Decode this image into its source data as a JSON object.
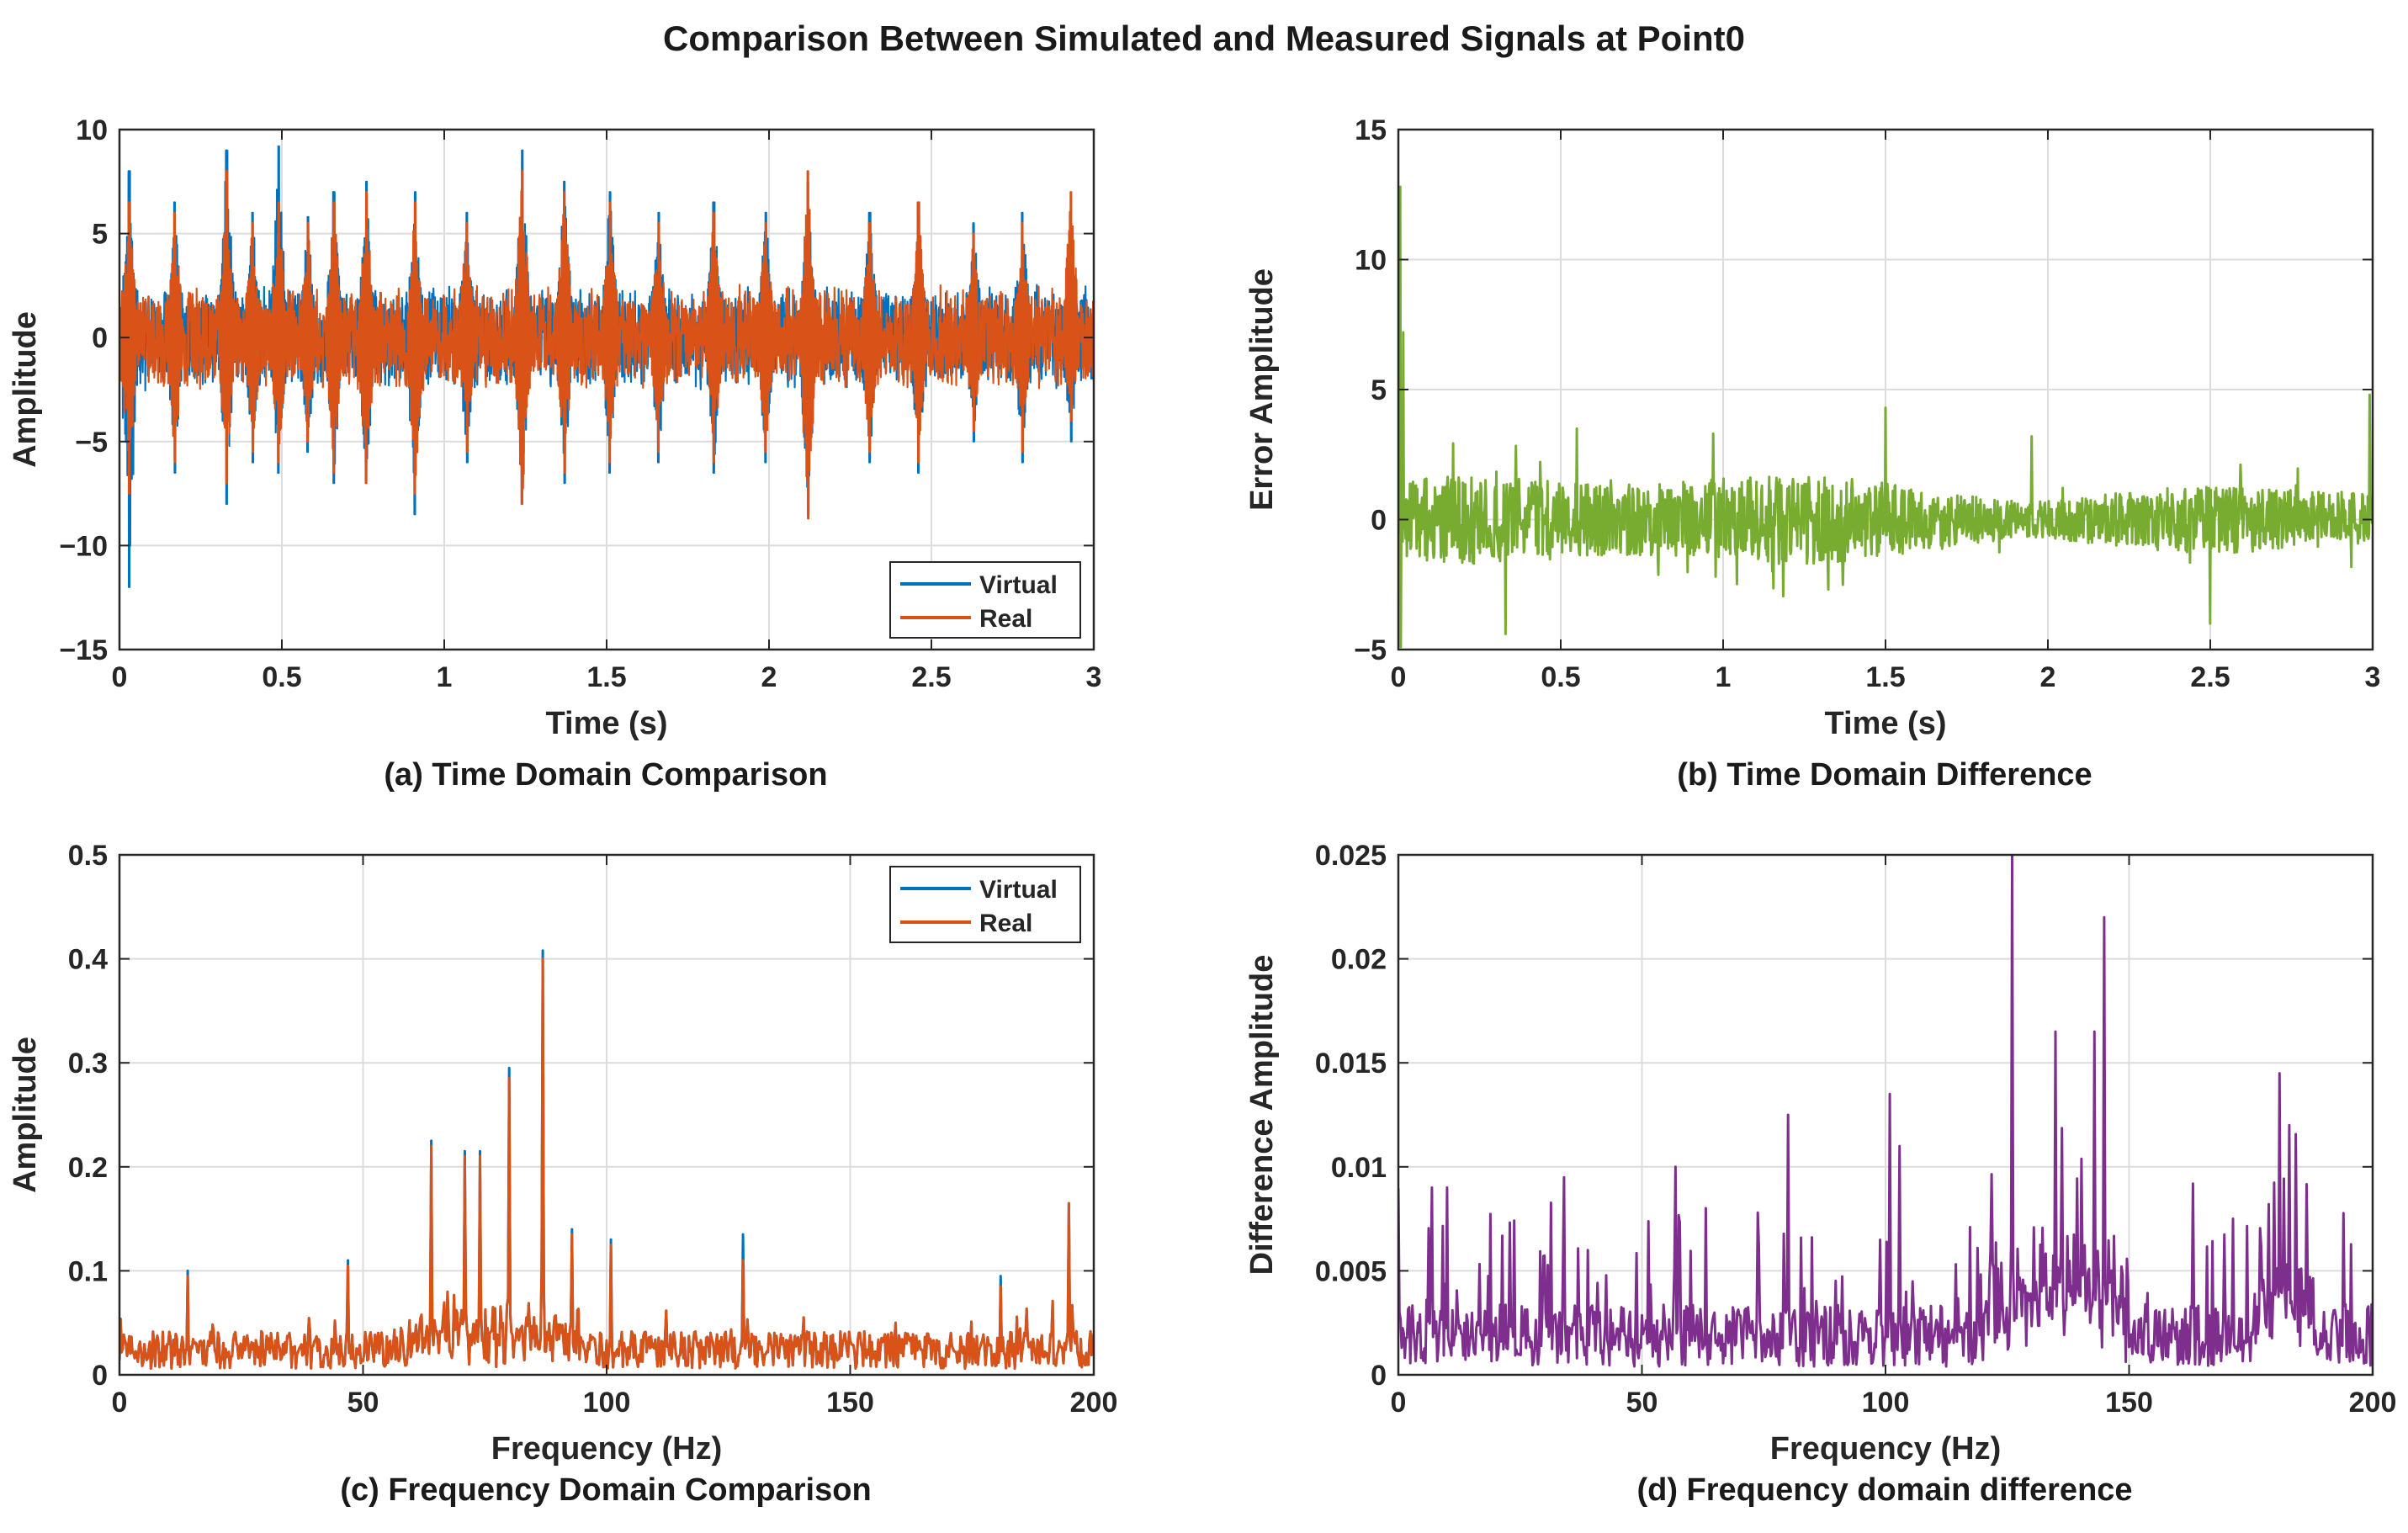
{
  "figure": {
    "title": "Comparison Between Simulated and Measured Signals at Point0"
  },
  "colors": {
    "virtual": "#0072BD",
    "real": "#D95319",
    "error": "#77AC30",
    "difference": "#7E2F8E",
    "grid": "#dcdcdc",
    "axis": "#262626"
  },
  "chart_data": [
    {
      "id": "a",
      "type": "line",
      "caption": "(a) Time Domain Comparison",
      "title": "",
      "xlabel": "Time (s)",
      "ylabel": "Amplitude",
      "xlim": [
        0,
        3
      ],
      "ylim": [
        -15,
        10
      ],
      "xticks": [
        0,
        0.5,
        1,
        1.5,
        2,
        2.5,
        3
      ],
      "xtick_labels": [
        "0",
        "0.5",
        "1",
        "1.5",
        "2",
        "2.5",
        "3"
      ],
      "yticks": [
        -15,
        -10,
        -5,
        0,
        5,
        10
      ],
      "ytick_labels": [
        "−15",
        "−10",
        "−5",
        "0",
        "5",
        "10"
      ],
      "grid": true,
      "legend": "bottom-right",
      "series": [
        {
          "name": "Virtual",
          "color": "#0072BD",
          "style": "dense oscillation, envelope about ±3 to ±5 with periodic bursts",
          "peak_times": [
            0.03,
            0.17,
            0.33,
            0.41,
            0.49,
            0.58,
            0.66,
            0.76,
            0.91,
            1.07,
            1.24,
            1.37,
            1.51,
            1.66,
            1.83,
            1.99,
            2.12,
            2.31,
            2.46,
            2.63,
            2.78,
            2.93
          ],
          "peak_max": [
            8.0,
            6.5,
            9.0,
            6.0,
            9.2,
            5.8,
            7.0,
            7.5,
            7.0,
            6.0,
            9.0,
            7.5,
            7.0,
            6.0,
            6.5,
            6.0,
            7.5,
            6.0,
            6.5,
            5.5,
            6.0,
            5.5
          ],
          "peak_min": [
            -12.0,
            -6.5,
            -8.0,
            -6.0,
            -6.5,
            -5.5,
            -7.0,
            -7.0,
            -8.5,
            -6.0,
            -8.0,
            -7.0,
            -6.5,
            -6.0,
            -6.5,
            -6.0,
            -8.5,
            -6.0,
            -6.5,
            -5.0,
            -6.0,
            -5.0
          ]
        },
        {
          "name": "Real",
          "color": "#D95319",
          "style": "dense oscillation tracking Virtual with slightly smaller peaks",
          "peak_times": [
            0.03,
            0.17,
            0.33,
            0.41,
            0.49,
            0.58,
            0.66,
            0.76,
            0.91,
            1.07,
            1.24,
            1.37,
            1.51,
            1.66,
            1.83,
            1.99,
            2.12,
            2.31,
            2.46,
            2.63,
            2.78,
            2.93
          ],
          "peak_max": [
            6.5,
            6.0,
            8.0,
            5.5,
            6.5,
            5.5,
            6.5,
            7.0,
            6.5,
            5.5,
            8.0,
            7.0,
            6.5,
            5.5,
            6.0,
            5.5,
            8.0,
            5.5,
            6.5,
            5.0,
            5.5,
            7.0
          ],
          "peak_min": [
            -7.5,
            -6.0,
            -7.0,
            -5.5,
            -6.0,
            -5.0,
            -6.5,
            -7.0,
            -7.5,
            -5.5,
            -8.0,
            -6.5,
            -6.0,
            -5.5,
            -6.0,
            -5.5,
            -8.7,
            -5.5,
            -6.0,
            -4.5,
            -5.5,
            -4.0
          ]
        }
      ]
    },
    {
      "id": "b",
      "type": "line",
      "caption": "(b) Time Domain Difference",
      "title": "",
      "xlabel": "Time (s)",
      "ylabel": "Error Amplitude",
      "xlim": [
        0,
        3
      ],
      "ylim": [
        -5,
        15
      ],
      "xticks": [
        0,
        0.5,
        1,
        1.5,
        2,
        2.5,
        3
      ],
      "xtick_labels": [
        "0",
        "0.5",
        "1",
        "1.5",
        "2",
        "2.5",
        "3"
      ],
      "yticks": [
        -5,
        0,
        5,
        10,
        15
      ],
      "ytick_labels": [
        "−5",
        "0",
        "5",
        "10",
        "15"
      ],
      "grid": true,
      "legend": "none",
      "series": [
        {
          "name": "Error",
          "color": "#77AC30",
          "style": "noise about 0 with envelope near ±2, initial transient",
          "spikes": [
            [
              0.005,
              12.8
            ],
            [
              0.008,
              -4.9
            ],
            [
              0.015,
              7.2
            ],
            [
              0.33,
              -4.4
            ],
            [
              0.55,
              3.5
            ],
            [
              0.97,
              3.3
            ],
            [
              1.5,
              4.3
            ],
            [
              1.95,
              3.2
            ],
            [
              2.5,
              -4.0
            ],
            [
              2.99,
              4.8
            ]
          ]
        }
      ]
    },
    {
      "id": "c",
      "type": "line",
      "caption": "(c) Frequency Domain Comparison",
      "title": "",
      "xlabel": "Frequency (Hz)",
      "ylabel": "Amplitude",
      "xlim": [
        0,
        200
      ],
      "ylim": [
        0,
        0.5
      ],
      "xticks": [
        0,
        50,
        100,
        150,
        200
      ],
      "xtick_labels": [
        "0",
        "50",
        "100",
        "150",
        "200"
      ],
      "yticks": [
        0,
        0.1,
        0.2,
        0.3,
        0.4,
        0.5
      ],
      "ytick_labels": [
        "0",
        "0.1",
        "0.2",
        "0.3",
        "0.4",
        "0.5"
      ],
      "grid": true,
      "legend": "top-right",
      "series": [
        {
          "name": "Virtual",
          "color": "#0072BD",
          "baseline": 0.03,
          "peaks": [
            [
              14,
              0.1
            ],
            [
              47,
              0.11
            ],
            [
              64,
              0.225
            ],
            [
              71,
              0.215
            ],
            [
              74,
              0.215
            ],
            [
              80,
              0.295
            ],
            [
              87,
              0.408
            ],
            [
              93,
              0.14
            ],
            [
              101,
              0.13
            ],
            [
              128,
              0.135
            ],
            [
              181,
              0.095
            ],
            [
              195,
              0.165
            ]
          ]
        },
        {
          "name": "Real",
          "color": "#D95319",
          "baseline": 0.03,
          "peaks": [
            [
              14,
              0.095
            ],
            [
              47,
              0.105
            ],
            [
              64,
              0.22
            ],
            [
              71,
              0.21
            ],
            [
              74,
              0.21
            ],
            [
              80,
              0.285
            ],
            [
              87,
              0.4
            ],
            [
              93,
              0.135
            ],
            [
              101,
              0.125
            ],
            [
              128,
              0.11
            ],
            [
              181,
              0.085
            ],
            [
              195,
              0.165
            ]
          ]
        }
      ]
    },
    {
      "id": "d",
      "type": "line",
      "caption": "(d) Frequency domain difference",
      "title": "",
      "xlabel": "Frequency (Hz)",
      "ylabel": "Difference Amplitude",
      "xlim": [
        0,
        200
      ],
      "ylim": [
        0,
        0.025
      ],
      "xticks": [
        0,
        50,
        100,
        150,
        200
      ],
      "xtick_labels": [
        "0",
        "50",
        "100",
        "150",
        "200"
      ],
      "yticks": [
        0,
        0.005,
        0.01,
        0.015,
        0.02,
        0.025
      ],
      "ytick_labels": [
        "0",
        "0.005",
        "0.01",
        "0.015",
        "0.02",
        "0.025"
      ],
      "grid": true,
      "legend": "none",
      "series": [
        {
          "name": "Difference",
          "color": "#7E2F8E",
          "baseline": 0.002,
          "peaks": [
            [
              7,
              0.009
            ],
            [
              10,
              0.009
            ],
            [
              34,
              0.0095
            ],
            [
              57,
              0.01
            ],
            [
              80,
              0.0125
            ],
            [
              101,
              0.0135
            ],
            [
              103,
              0.011
            ],
            [
              126,
              0.025
            ],
            [
              135,
              0.0165
            ],
            [
              143,
              0.0165
            ],
            [
              145,
              0.022
            ],
            [
              181,
              0.0145
            ],
            [
              183,
              0.012
            ]
          ]
        }
      ]
    }
  ]
}
